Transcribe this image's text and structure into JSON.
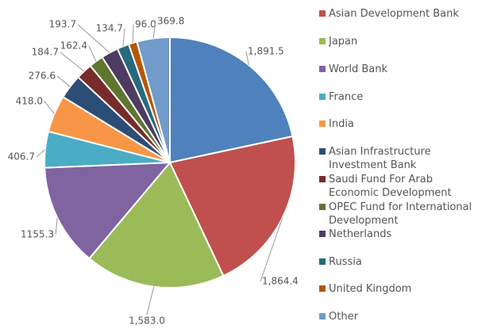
{
  "chart_data": {
    "type": "pie",
    "categories": [
      null,
      "Asian Development Bank",
      "Japan",
      "World Bank",
      "France",
      "India",
      "Asian Infrastructure Investment Bank",
      "Saudi Fund For Arab Economic Development",
      "OPEC Fund for International Development",
      "Netherlands",
      "Russia",
      "United Kingdom",
      "Other"
    ],
    "values": [
      1891.5,
      1864.4,
      1583.0,
      1155.3,
      406.7,
      418.0,
      276.6,
      184.7,
      162.4,
      193.7,
      134.7,
      96.0,
      369.8
    ],
    "value_labels": [
      "1,891.5",
      "1,864.4",
      "1,583.0",
      "1155.3",
      "406.7",
      "418.0",
      "276.6",
      "184.7",
      "162.4",
      "193.7",
      "134.7",
      "96.0",
      "369.8"
    ],
    "colors": [
      "#4f81bd",
      "#c0504d",
      "#9bbb59",
      "#8064a2",
      "#4bacc6",
      "#f79646",
      "#2c4d75",
      "#772c2a",
      "#5f7530",
      "#4d3b62",
      "#276a7c",
      "#b65708",
      "#729aca"
    ]
  }
}
